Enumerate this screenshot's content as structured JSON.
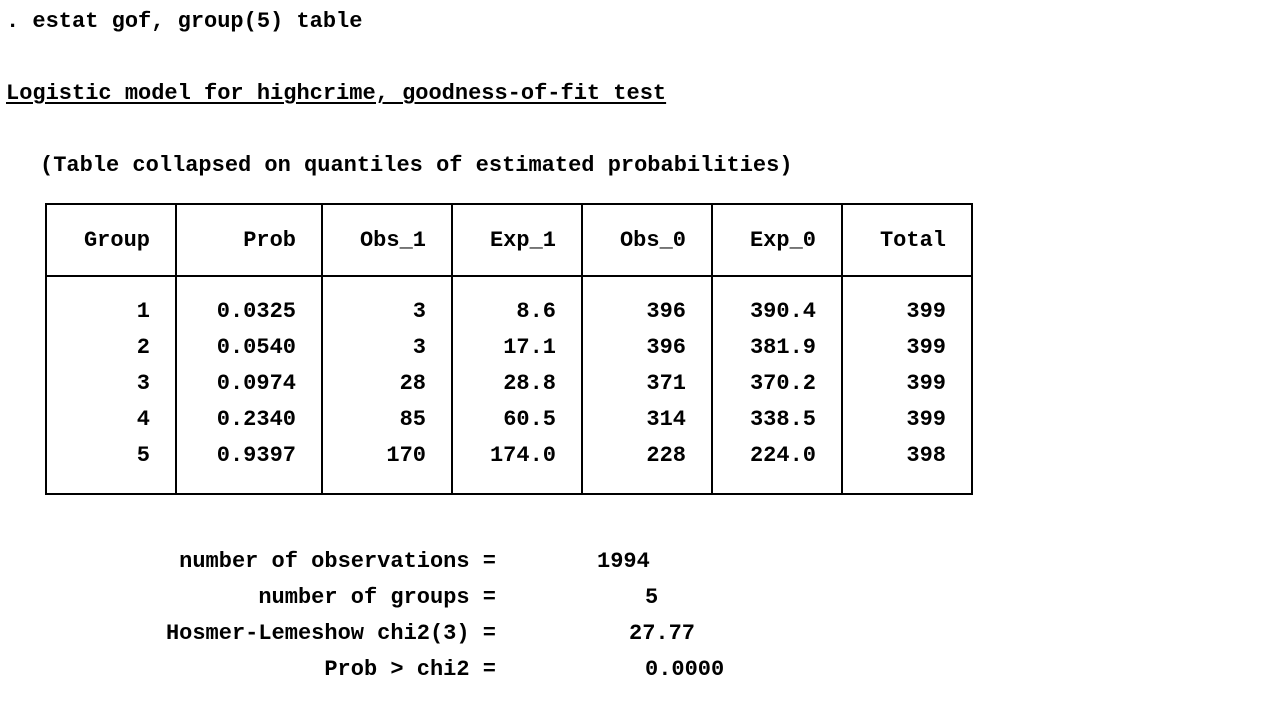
{
  "command": ". estat gof, group(5) table",
  "title": "Logistic model for highcrime, goodness-of-fit test",
  "note": "(Table collapsed on quantiles of estimated probabilities)",
  "table": {
    "headers": [
      "Group",
      "Prob",
      "Obs_1",
      "Exp_1",
      "Obs_0",
      "Exp_0",
      "Total"
    ],
    "rows": [
      [
        "1",
        "0.0325",
        "3",
        "8.6",
        "396",
        "390.4",
        "399"
      ],
      [
        "2",
        "0.0540",
        "3",
        "17.1",
        "396",
        "381.9",
        "399"
      ],
      [
        "3",
        "0.0974",
        "28",
        "28.8",
        "371",
        "370.2",
        "399"
      ],
      [
        "4",
        "0.2340",
        "85",
        "60.5",
        "314",
        "338.5",
        "399"
      ],
      [
        "5",
        "0.9397",
        "170",
        "174.0",
        "228",
        "224.0",
        "398"
      ]
    ]
  },
  "stats": [
    {
      "label": "number of observations =",
      "value": "1994"
    },
    {
      "label": "number of groups =",
      "value": "5"
    },
    {
      "label": "Hosmer-Lemeshow chi2(3) =",
      "value": "27.77"
    },
    {
      "label": "Prob > chi2 =",
      "value": "0.0000"
    }
  ]
}
